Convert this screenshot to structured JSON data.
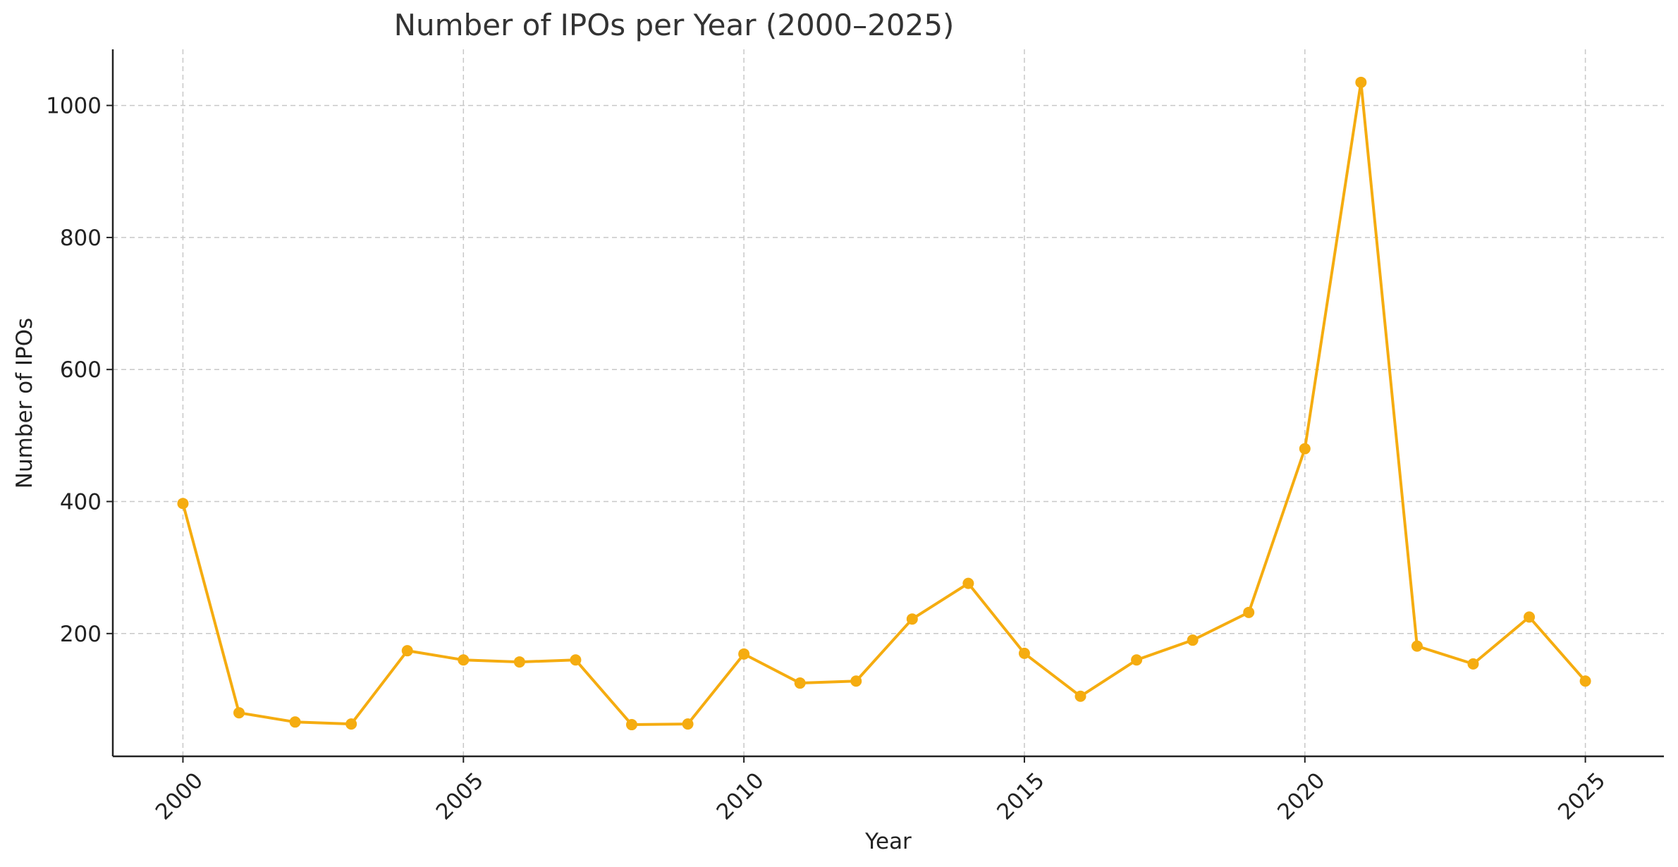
{
  "chart_data": {
    "type": "line",
    "title": "Number of IPOs per Year (2000–2025)",
    "xlabel": "Year",
    "ylabel": "Number of IPOs",
    "x": [
      2000,
      2001,
      2002,
      2003,
      2004,
      2005,
      2006,
      2007,
      2008,
      2009,
      2010,
      2011,
      2012,
      2013,
      2014,
      2015,
      2016,
      2017,
      2018,
      2019,
      2020,
      2021,
      2022,
      2023,
      2024,
      2025
    ],
    "series": [
      {
        "values": [
          397,
          80,
          66,
          63,
          174,
          160,
          157,
          160,
          62,
          63,
          169,
          125,
          128,
          222,
          276,
          170,
          105,
          160,
          190,
          232,
          480,
          1035,
          181,
          154,
          225,
          128
        ],
        "color": "#F5AC10"
      }
    ],
    "xticks": [
      "2000",
      "2005",
      "2010",
      "2015",
      "2020",
      "2025"
    ],
    "yticks": [
      "200",
      "400",
      "600",
      "800",
      "1000"
    ],
    "xlim": [
      1998.75,
      2026.4
    ],
    "ylim": [
      14,
      1085
    ],
    "grid": true,
    "legend": "none"
  }
}
